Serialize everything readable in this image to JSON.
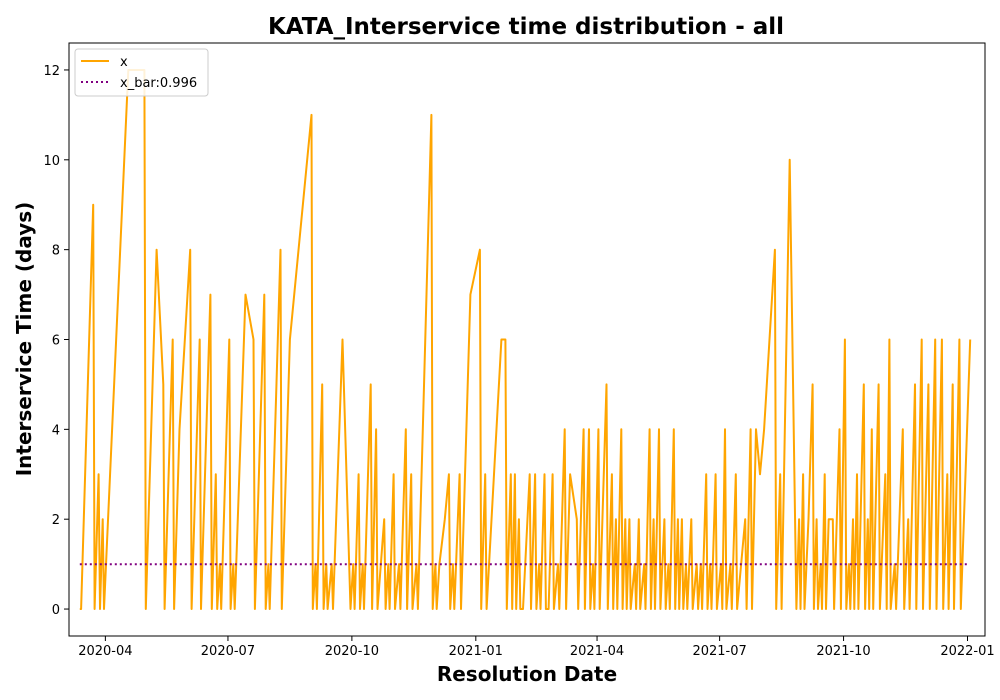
{
  "chart_data": {
    "type": "line",
    "title": "KATA_Interservice time distribution - all",
    "xlabel": "Resolution Date",
    "ylabel": "Interservice Time (days)",
    "xlim": [
      "2020-03-05",
      "2022-01-14"
    ],
    "ylim": [
      -0.6,
      12.6
    ],
    "x_ticks": [
      "2020-04-01",
      "2020-07-01",
      "2020-10-01",
      "2021-01-01",
      "2021-04-01",
      "2021-07-01",
      "2021-10-01",
      "2022-01-01"
    ],
    "x_tick_labels": [
      "2020-04",
      "2020-07",
      "2020-10",
      "2021-01",
      "2021-04",
      "2021-07",
      "2021-10",
      "2022-01"
    ],
    "y_ticks": [
      0,
      2,
      4,
      6,
      8,
      10,
      12
    ],
    "y_tick_labels": [
      "0",
      "2",
      "4",
      "6",
      "8",
      "10",
      "12"
    ],
    "grid": false,
    "legend_position": "top-left",
    "series": [
      {
        "name": "x",
        "color": "#ffa500",
        "style": "solid",
        "points": [
          [
            "2020-03-13",
            0
          ],
          [
            "2020-03-14",
            0
          ],
          [
            "2020-03-23",
            9
          ],
          [
            "2020-03-24",
            0
          ],
          [
            "2020-03-27",
            3
          ],
          [
            "2020-03-28",
            0
          ],
          [
            "2020-03-30",
            2
          ],
          [
            "2020-03-31",
            0
          ],
          [
            "2020-04-18",
            12
          ],
          [
            "2020-04-30",
            12
          ],
          [
            "2020-05-01",
            0
          ],
          [
            "2020-05-09",
            8
          ],
          [
            "2020-05-14",
            5
          ],
          [
            "2020-05-15",
            0
          ],
          [
            "2020-05-21",
            6
          ],
          [
            "2020-05-22",
            0
          ],
          [
            "2020-05-26",
            4
          ],
          [
            "2020-06-03",
            8
          ],
          [
            "2020-06-04",
            0
          ],
          [
            "2020-06-10",
            6
          ],
          [
            "2020-06-11",
            0
          ],
          [
            "2020-06-18",
            7
          ],
          [
            "2020-06-19",
            0
          ],
          [
            "2020-06-22",
            3
          ],
          [
            "2020-06-23",
            0
          ],
          [
            "2020-06-25",
            1
          ],
          [
            "2020-06-26",
            0
          ],
          [
            "2020-07-02",
            6
          ],
          [
            "2020-07-03",
            0
          ],
          [
            "2020-07-05",
            1
          ],
          [
            "2020-07-06",
            0
          ],
          [
            "2020-07-14",
            7
          ],
          [
            "2020-07-20",
            6
          ],
          [
            "2020-07-21",
            0
          ],
          [
            "2020-07-28",
            7
          ],
          [
            "2020-07-29",
            0
          ],
          [
            "2020-07-31",
            1
          ],
          [
            "2020-08-01",
            0
          ],
          [
            "2020-08-09",
            8
          ],
          [
            "2020-08-10",
            0
          ],
          [
            "2020-08-16",
            6
          ],
          [
            "2020-09-01",
            11
          ],
          [
            "2020-09-02",
            0
          ],
          [
            "2020-09-04",
            1
          ],
          [
            "2020-09-05",
            0
          ],
          [
            "2020-09-09",
            5
          ],
          [
            "2020-09-10",
            0
          ],
          [
            "2020-09-12",
            1
          ],
          [
            "2020-09-13",
            0
          ],
          [
            "2020-09-16",
            1
          ],
          [
            "2020-09-17",
            0
          ],
          [
            "2020-09-24",
            6
          ],
          [
            "2020-09-30",
            0
          ],
          [
            "2020-10-02",
            1
          ],
          [
            "2020-10-03",
            0
          ],
          [
            "2020-10-06",
            3
          ],
          [
            "2020-10-07",
            0
          ],
          [
            "2020-10-09",
            1
          ],
          [
            "2020-10-10",
            0
          ],
          [
            "2020-10-15",
            5
          ],
          [
            "2020-10-16",
            0
          ],
          [
            "2020-10-19",
            4
          ],
          [
            "2020-10-20",
            0
          ],
          [
            "2020-10-25",
            2
          ],
          [
            "2020-10-26",
            0
          ],
          [
            "2020-10-28",
            1
          ],
          [
            "2020-10-29",
            0
          ],
          [
            "2020-11-01",
            3
          ],
          [
            "2020-11-02",
            0
          ],
          [
            "2020-11-05",
            1
          ],
          [
            "2020-11-06",
            0
          ],
          [
            "2020-11-10",
            4
          ],
          [
            "2020-11-11",
            0
          ],
          [
            "2020-11-14",
            3
          ],
          [
            "2020-11-15",
            0
          ],
          [
            "2020-11-18",
            1
          ],
          [
            "2020-11-19",
            0
          ],
          [
            "2020-11-29",
            11
          ],
          [
            "2020-11-30",
            0
          ],
          [
            "2020-12-02",
            1
          ],
          [
            "2020-12-03",
            0
          ],
          [
            "2020-12-05",
            1
          ],
          [
            "2020-12-09",
            2
          ],
          [
            "2020-12-12",
            3
          ],
          [
            "2020-12-13",
            0
          ],
          [
            "2020-12-15",
            1
          ],
          [
            "2020-12-16",
            0
          ],
          [
            "2020-12-20",
            3
          ],
          [
            "2020-12-21",
            0
          ],
          [
            "2020-12-28",
            7
          ],
          [
            "2021-01-04",
            8
          ],
          [
            "2021-01-05",
            0
          ],
          [
            "2021-01-08",
            3
          ],
          [
            "2021-01-09",
            0
          ],
          [
            "2021-01-20",
            6
          ],
          [
            "2021-01-23",
            6
          ],
          [
            "2021-01-24",
            0
          ],
          [
            "2021-01-27",
            3
          ],
          [
            "2021-01-28",
            0
          ],
          [
            "2021-01-30",
            3
          ],
          [
            "2021-01-31",
            0
          ],
          [
            "2021-02-02",
            2
          ],
          [
            "2021-02-03",
            0
          ],
          [
            "2021-02-05",
            0
          ],
          [
            "2021-02-10",
            3
          ],
          [
            "2021-02-11",
            0
          ],
          [
            "2021-02-14",
            3
          ],
          [
            "2021-02-15",
            0
          ],
          [
            "2021-02-17",
            1
          ],
          [
            "2021-02-18",
            0
          ],
          [
            "2021-02-21",
            3
          ],
          [
            "2021-02-22",
            0
          ],
          [
            "2021-02-24",
            0
          ],
          [
            "2021-02-27",
            3
          ],
          [
            "2021-02-28",
            0
          ],
          [
            "2021-03-03",
            1
          ],
          [
            "2021-03-04",
            0
          ],
          [
            "2021-03-08",
            4
          ],
          [
            "2021-03-09",
            0
          ],
          [
            "2021-03-12",
            3
          ],
          [
            "2021-03-17",
            2
          ],
          [
            "2021-03-18",
            0
          ],
          [
            "2021-03-22",
            4
          ],
          [
            "2021-03-23",
            0
          ],
          [
            "2021-03-26",
            4
          ],
          [
            "2021-03-27",
            0
          ],
          [
            "2021-03-29",
            1
          ],
          [
            "2021-03-30",
            0
          ],
          [
            "2021-04-02",
            4
          ],
          [
            "2021-04-03",
            0
          ],
          [
            "2021-04-08",
            5
          ],
          [
            "2021-04-09",
            0
          ],
          [
            "2021-04-12",
            3
          ],
          [
            "2021-04-13",
            0
          ],
          [
            "2021-04-15",
            2
          ],
          [
            "2021-04-16",
            0
          ],
          [
            "2021-04-19",
            4
          ],
          [
            "2021-04-20",
            0
          ],
          [
            "2021-04-22",
            2
          ],
          [
            "2021-04-23",
            0
          ],
          [
            "2021-04-25",
            2
          ],
          [
            "2021-04-26",
            0
          ],
          [
            "2021-04-29",
            1
          ],
          [
            "2021-04-30",
            0
          ],
          [
            "2021-05-02",
            2
          ],
          [
            "2021-05-03",
            0
          ],
          [
            "2021-05-06",
            1
          ],
          [
            "2021-05-07",
            0
          ],
          [
            "2021-05-10",
            4
          ],
          [
            "2021-05-11",
            0
          ],
          [
            "2021-05-13",
            2
          ],
          [
            "2021-05-14",
            0
          ],
          [
            "2021-05-17",
            4
          ],
          [
            "2021-05-18",
            0
          ],
          [
            "2021-05-21",
            2
          ],
          [
            "2021-05-22",
            0
          ],
          [
            "2021-05-24",
            1
          ],
          [
            "2021-05-25",
            0
          ],
          [
            "2021-05-28",
            4
          ],
          [
            "2021-05-29",
            0
          ],
          [
            "2021-05-31",
            2
          ],
          [
            "2021-06-01",
            0
          ],
          [
            "2021-06-03",
            2
          ],
          [
            "2021-06-04",
            0
          ],
          [
            "2021-06-06",
            1
          ],
          [
            "2021-06-07",
            0
          ],
          [
            "2021-06-10",
            2
          ],
          [
            "2021-06-11",
            0
          ],
          [
            "2021-06-14",
            1
          ],
          [
            "2021-06-15",
            0
          ],
          [
            "2021-06-17",
            1
          ],
          [
            "2021-06-18",
            0
          ],
          [
            "2021-06-21",
            3
          ],
          [
            "2021-06-22",
            0
          ],
          [
            "2021-06-24",
            1
          ],
          [
            "2021-06-25",
            0
          ],
          [
            "2021-06-28",
            3
          ],
          [
            "2021-06-29",
            0
          ],
          [
            "2021-07-02",
            1
          ],
          [
            "2021-07-03",
            0
          ],
          [
            "2021-07-05",
            4
          ],
          [
            "2021-07-06",
            0
          ],
          [
            "2021-07-09",
            1
          ],
          [
            "2021-07-10",
            0
          ],
          [
            "2021-07-13",
            3
          ],
          [
            "2021-07-14",
            0
          ],
          [
            "2021-07-20",
            2
          ],
          [
            "2021-07-21",
            0
          ],
          [
            "2021-07-24",
            4
          ],
          [
            "2021-07-25",
            0
          ],
          [
            "2021-07-28",
            4
          ],
          [
            "2021-07-31",
            3
          ],
          [
            "2021-08-03",
            4
          ],
          [
            "2021-08-11",
            8
          ],
          [
            "2021-08-12",
            0
          ],
          [
            "2021-08-15",
            3
          ],
          [
            "2021-08-16",
            0
          ],
          [
            "2021-08-22",
            10
          ],
          [
            "2021-08-27",
            0
          ],
          [
            "2021-08-29",
            2
          ],
          [
            "2021-08-30",
            0
          ],
          [
            "2021-09-01",
            3
          ],
          [
            "2021-09-02",
            0
          ],
          [
            "2021-09-05",
            2
          ],
          [
            "2021-09-08",
            5
          ],
          [
            "2021-09-09",
            0
          ],
          [
            "2021-09-11",
            2
          ],
          [
            "2021-09-12",
            0
          ],
          [
            "2021-09-14",
            1
          ],
          [
            "2021-09-15",
            0
          ],
          [
            "2021-09-17",
            3
          ],
          [
            "2021-09-18",
            0
          ],
          [
            "2021-09-20",
            2
          ],
          [
            "2021-09-23",
            2
          ],
          [
            "2021-09-24",
            0
          ],
          [
            "2021-09-28",
            4
          ],
          [
            "2021-09-29",
            0
          ],
          [
            "2021-10-02",
            6
          ],
          [
            "2021-10-03",
            0
          ],
          [
            "2021-10-05",
            1
          ],
          [
            "2021-10-06",
            0
          ],
          [
            "2021-10-08",
            2
          ],
          [
            "2021-10-09",
            0
          ],
          [
            "2021-10-11",
            3
          ],
          [
            "2021-10-12",
            0
          ],
          [
            "2021-10-16",
            5
          ],
          [
            "2021-10-17",
            0
          ],
          [
            "2021-10-19",
            2
          ],
          [
            "2021-10-20",
            0
          ],
          [
            "2021-10-22",
            4
          ],
          [
            "2021-10-23",
            0
          ],
          [
            "2021-10-27",
            5
          ],
          [
            "2021-10-28",
            0
          ],
          [
            "2021-11-01",
            3
          ],
          [
            "2021-11-02",
            0
          ],
          [
            "2021-11-04",
            6
          ],
          [
            "2021-11-05",
            0
          ],
          [
            "2021-11-08",
            1
          ],
          [
            "2021-11-09",
            0
          ],
          [
            "2021-11-14",
            4
          ],
          [
            "2021-11-15",
            0
          ],
          [
            "2021-11-18",
            2
          ],
          [
            "2021-11-19",
            0
          ],
          [
            "2021-11-23",
            5
          ],
          [
            "2021-11-24",
            0
          ],
          [
            "2021-11-28",
            6
          ],
          [
            "2021-11-29",
            0
          ],
          [
            "2021-12-03",
            5
          ],
          [
            "2021-12-04",
            0
          ],
          [
            "2021-12-08",
            6
          ],
          [
            "2021-12-09",
            0
          ],
          [
            "2021-12-13",
            6
          ],
          [
            "2021-12-14",
            0
          ],
          [
            "2021-12-17",
            3
          ],
          [
            "2021-12-18",
            0
          ],
          [
            "2021-12-21",
            5
          ],
          [
            "2021-12-22",
            0
          ],
          [
            "2021-12-26",
            6
          ],
          [
            "2021-12-27",
            0
          ],
          [
            "2022-01-03",
            6
          ]
        ]
      },
      {
        "name": "x_bar:0.996",
        "color": "#800080",
        "style": "dotted",
        "points": [
          [
            "2020-03-13",
            0.996
          ],
          [
            "2022-01-01",
            0.996
          ]
        ]
      }
    ]
  }
}
